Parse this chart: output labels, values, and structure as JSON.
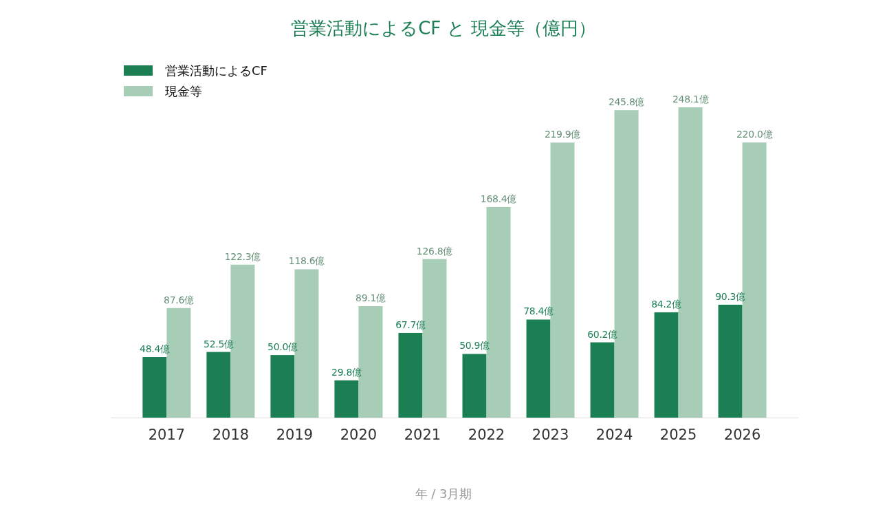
{
  "chart_data": {
    "type": "bar",
    "title": "営業活動によるCF と 現金等（億円）",
    "xlabel": "年 / 3月期",
    "categories": [
      "2017",
      "2018",
      "2019",
      "2020",
      "2021",
      "2022",
      "2023",
      "2024",
      "2025",
      "2026"
    ],
    "legend": "top left",
    "series": [
      {
        "name": "営業活動によるCF",
        "color": "#1b7f53",
        "values": [
          48.4,
          52.5,
          50.0,
          29.8,
          67.7,
          50.9,
          78.4,
          60.2,
          84.2,
          90.3
        ],
        "value_labels": [
          "48.4億",
          "52.5億",
          "50.0億",
          "29.8億",
          "67.7億",
          "50.9億",
          "78.4億",
          "60.2億",
          "84.2億",
          "90.3億"
        ]
      },
      {
        "name": "現金等",
        "color": "#a8cdb6",
        "values": [
          87.6,
          122.3,
          118.6,
          89.1,
          126.8,
          168.4,
          219.9,
          245.8,
          248.1,
          220.0
        ],
        "value_labels": [
          "87.6億",
          "122.3億",
          "118.6億",
          "89.1億",
          "126.8億",
          "168.4億",
          "219.9億",
          "245.8億",
          "248.1億",
          "220.0億"
        ]
      }
    ]
  }
}
